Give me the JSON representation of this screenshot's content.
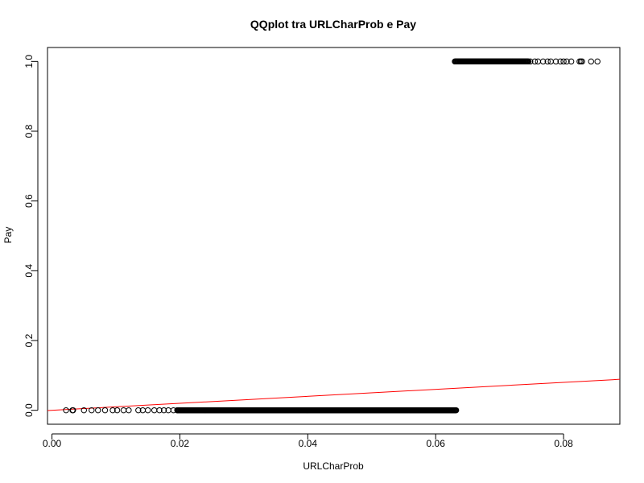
{
  "chart_data": {
    "type": "scatter",
    "title": "QQplot tra URLCharProb e Pay",
    "xlabel": "URLCharProb",
    "ylabel": "Pay",
    "xlim": [
      -0.0007,
      0.0888
    ],
    "ylim": [
      -0.04,
      1.04
    ],
    "x_ticks": [
      0.0,
      0.02,
      0.04,
      0.06,
      0.08
    ],
    "x_tick_labels": [
      "0.00",
      "0.02",
      "0.04",
      "0.06",
      "0.08"
    ],
    "y_ticks": [
      0.0,
      0.2,
      0.4,
      0.6,
      0.8,
      1.0
    ],
    "y_tick_labels": [
      "0.0",
      "0.2",
      "0.4",
      "0.6",
      "0.8",
      "1.0"
    ],
    "marker": "open-circle",
    "point_color": "#000000",
    "grid": false,
    "legend": "none",
    "series": [
      {
        "group": "0",
        "sparse_x": [
          0.0022,
          0.0032,
          0.0033,
          0.005,
          0.0062,
          0.0072,
          0.0083,
          0.0095,
          0.0102,
          0.0112,
          0.012,
          0.0135,
          0.0142,
          0.015,
          0.016,
          0.0168,
          0.0175,
          0.0182,
          0.019,
          0.0196
        ],
        "dense_x_range": [
          0.0196,
          0.0632
        ],
        "y": 0.0
      },
      {
        "group": "1",
        "dense_x_range": [
          0.063,
          0.0745
        ],
        "sparse_x": [
          0.0748,
          0.0755,
          0.076,
          0.0768,
          0.0775,
          0.078,
          0.0788,
          0.0795,
          0.08,
          0.0805,
          0.0812,
          0.0825,
          0.0827,
          0.0829,
          0.0843,
          0.0853
        ],
        "y": 1.0
      }
    ],
    "reference_line": {
      "intercept": 0.0,
      "slope": 1.0,
      "color": "#ff0000"
    }
  }
}
